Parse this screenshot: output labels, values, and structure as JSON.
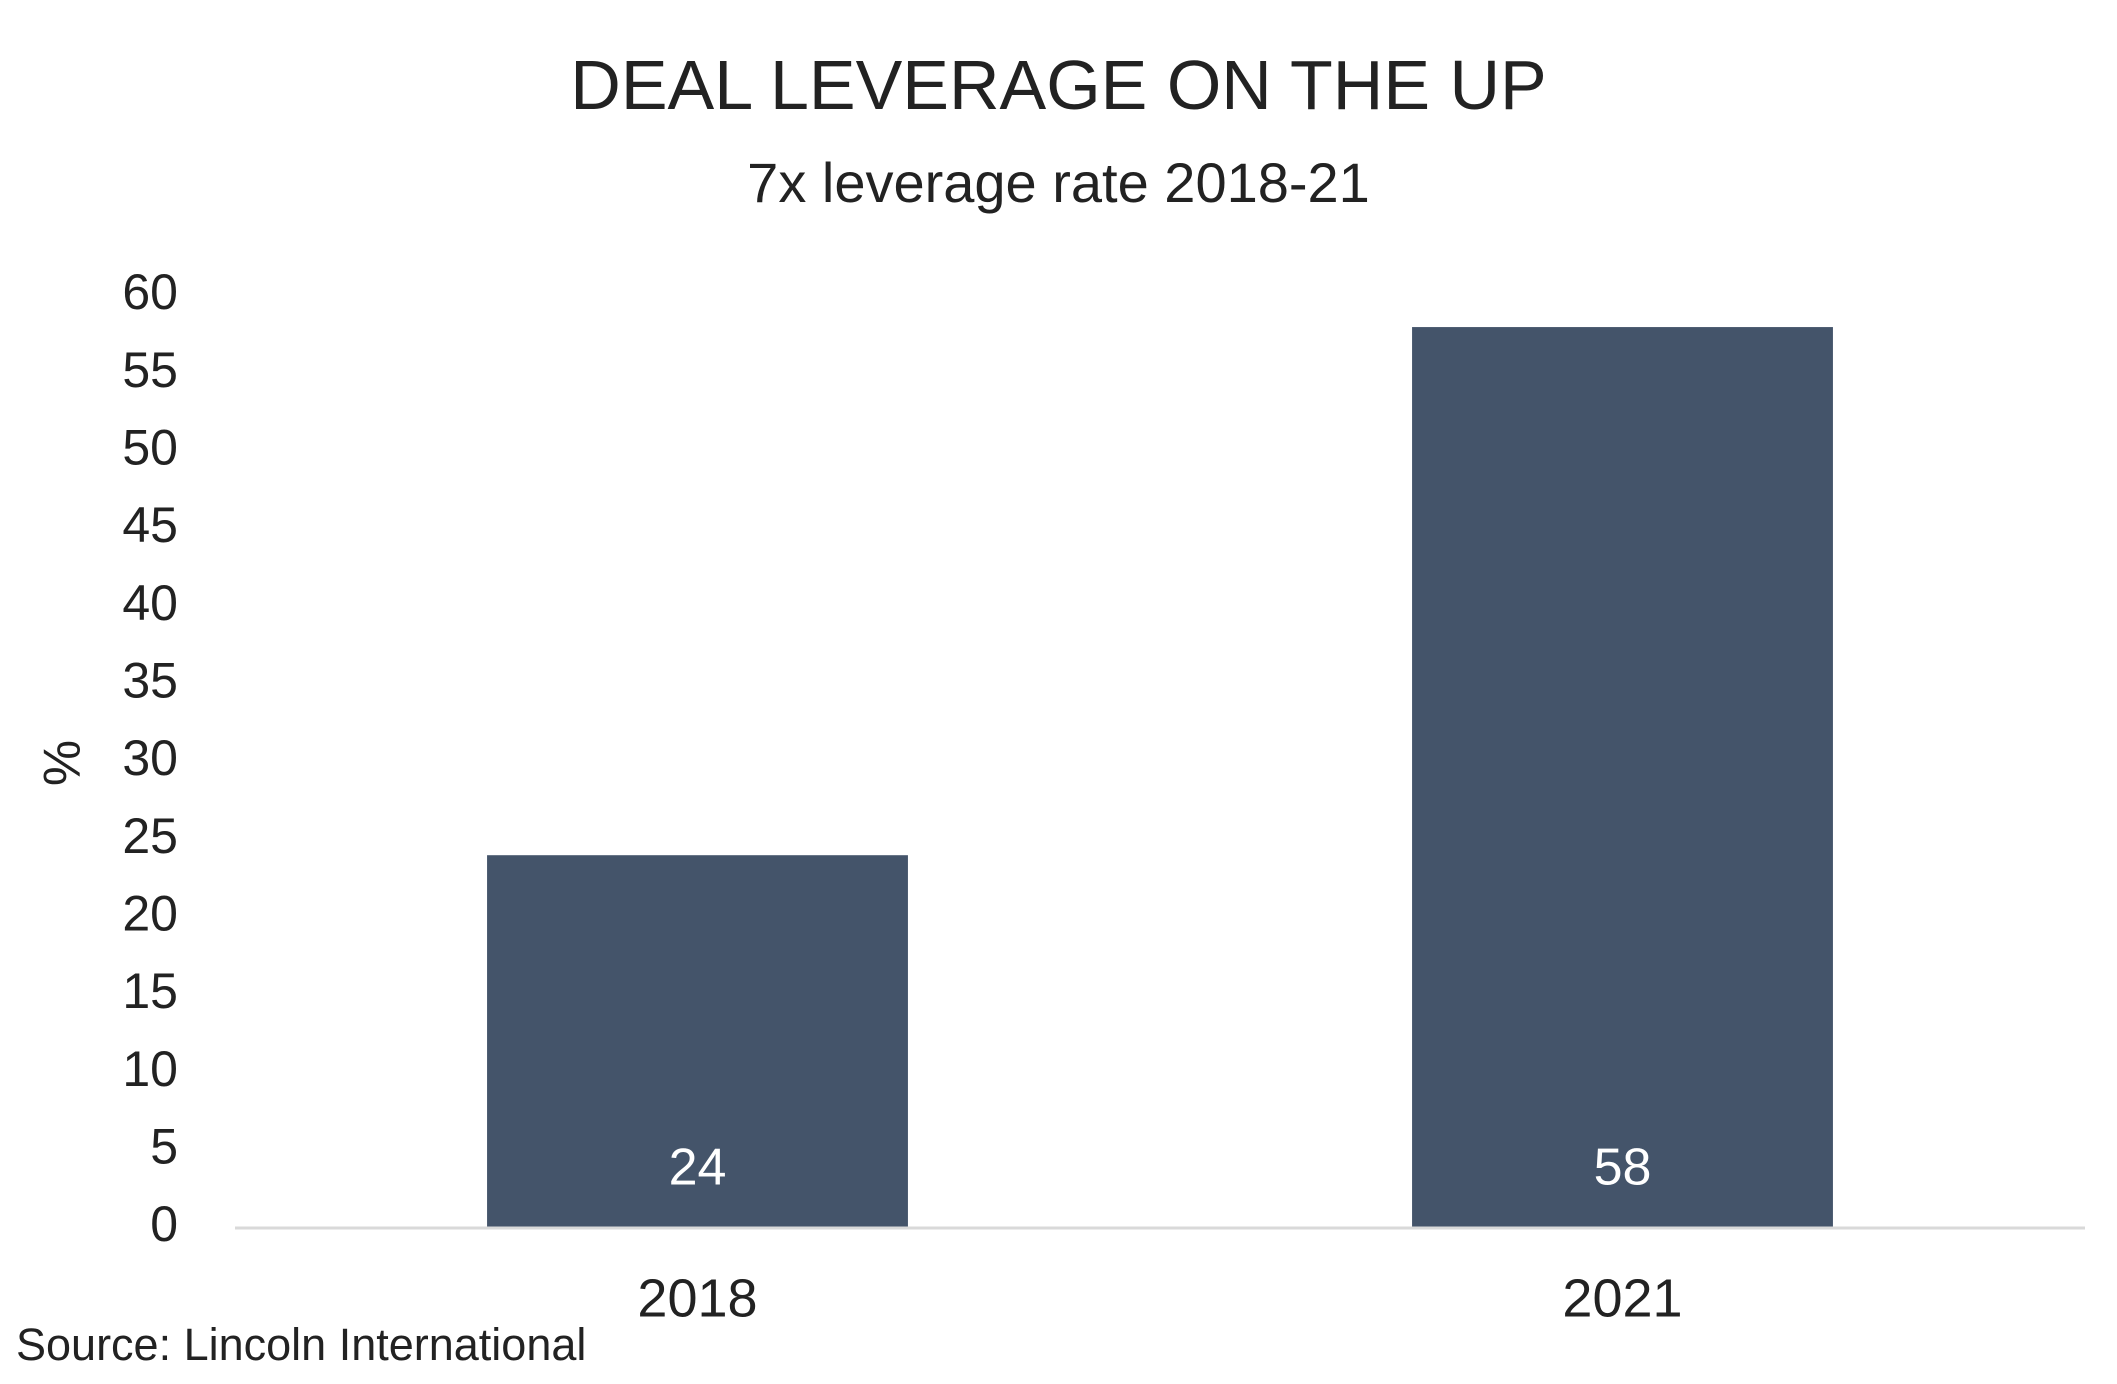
{
  "chart_data": {
    "type": "bar",
    "title": "DEAL LEVERAGE ON THE UP",
    "subtitle": "7x leverage rate 2018-21",
    "xlabel": "",
    "ylabel": "%",
    "categories": [
      "2018",
      "2021"
    ],
    "values": [
      24,
      58
    ],
    "data_labels": [
      "24",
      "58"
    ],
    "ylim": [
      0,
      60
    ],
    "yticks": [
      0,
      5,
      10,
      15,
      20,
      25,
      30,
      35,
      40,
      45,
      50,
      55,
      60
    ],
    "grid": false,
    "legend": "none",
    "bar_color": "#44546a",
    "data_label_color": "#ffffff",
    "axis_line_color": "#d9d9d9",
    "text_color": "#222222"
  },
  "source": "Source: Lincoln International"
}
